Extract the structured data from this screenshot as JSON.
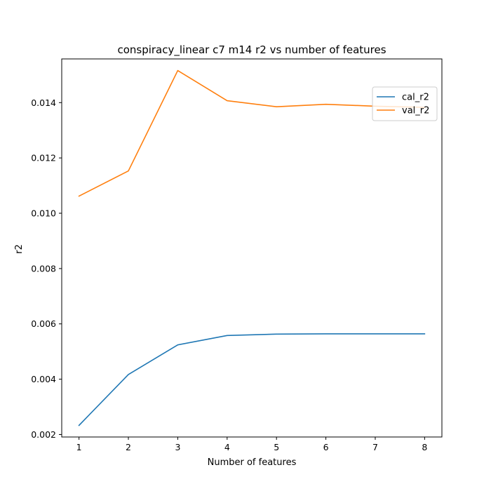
{
  "chart_data": {
    "type": "line",
    "title": "conspiracy_linear c7 m14 r2 vs number of features",
    "xlabel": "Number of features",
    "ylabel": "r2",
    "x": [
      1,
      2,
      3,
      4,
      5,
      6,
      7,
      8
    ],
    "xlim": [
      0.65,
      8.35
    ],
    "ylim": [
      0.00191,
      0.01558
    ],
    "xticks": [
      1,
      2,
      3,
      4,
      5,
      6,
      7,
      8
    ],
    "yticks": [
      0.002,
      0.004,
      0.006,
      0.008,
      0.01,
      0.012,
      0.014
    ],
    "ytick_labels": [
      "0.002",
      "0.004",
      "0.006",
      "0.008",
      "0.010",
      "0.012",
      "0.014"
    ],
    "grid": false,
    "legend_position": "upper right",
    "series": [
      {
        "name": "cal_r2",
        "color": "#1f77b4",
        "values": [
          0.00233,
          0.00417,
          0.00524,
          0.00558,
          0.00563,
          0.00564,
          0.00564,
          0.00564
        ]
      },
      {
        "name": "val_r2",
        "color": "#ff7f0e",
        "values": [
          0.01062,
          0.01153,
          0.01516,
          0.01407,
          0.01385,
          0.01394,
          0.01387,
          0.01383
        ]
      }
    ]
  }
}
